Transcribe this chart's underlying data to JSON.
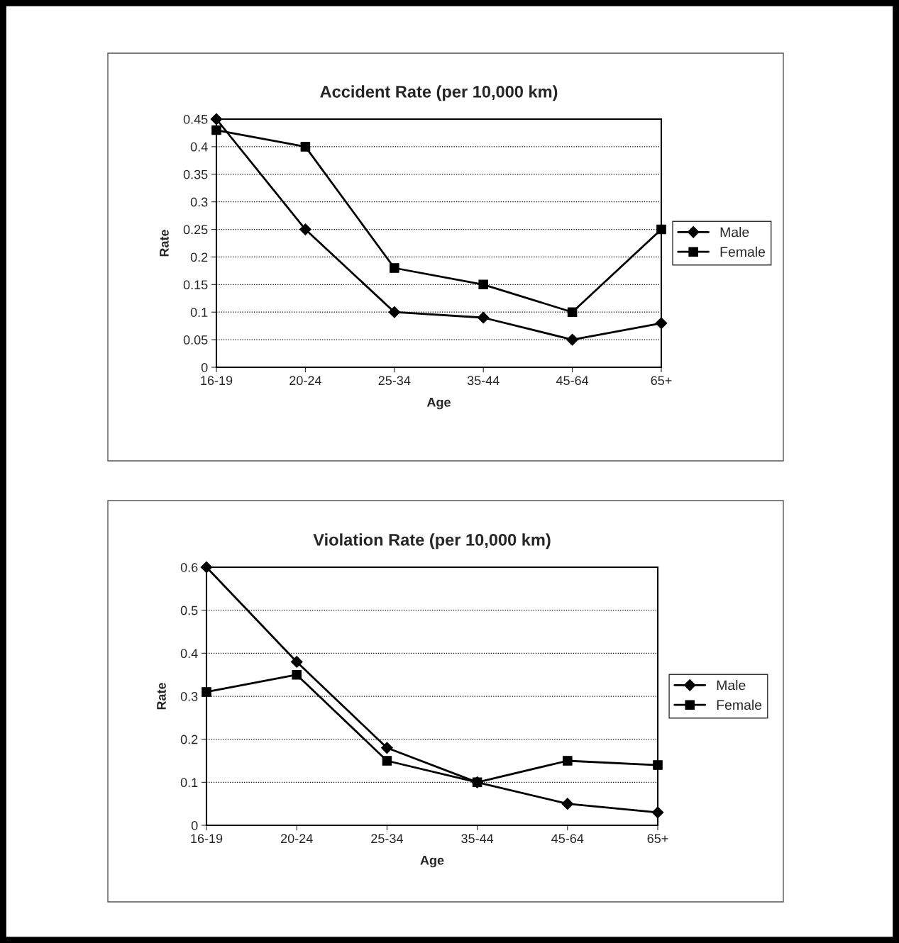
{
  "chart_data": [
    {
      "type": "line",
      "title": "Accident Rate (per 10,000 km)",
      "xlabel": "Age",
      "ylabel": "Rate",
      "categories": [
        "16-19",
        "20-24",
        "25-34",
        "35-44",
        "45-64",
        "65+"
      ],
      "series": [
        {
          "name": "Male",
          "color": "#000000",
          "marker": "diamond",
          "values": [
            0.45,
            0.25,
            0.1,
            0.09,
            0.05,
            0.08
          ]
        },
        {
          "name": "Female",
          "color": "#000000",
          "marker": "square",
          "values": [
            0.43,
            0.4,
            0.18,
            0.15,
            0.1,
            0.25
          ]
        }
      ],
      "ylim": [
        0,
        0.45
      ],
      "yticks": [
        0,
        0.05,
        0.1,
        0.15,
        0.2,
        0.25,
        0.3,
        0.35,
        0.4,
        0.45
      ],
      "grid": "y",
      "legend": "right",
      "line_style": "solid"
    },
    {
      "type": "line",
      "title": "Violation Rate (per 10,000 km)",
      "xlabel": "Age",
      "ylabel": "Rate",
      "categories": [
        "16-19",
        "20-24",
        "25-34",
        "35-44",
        "45-64",
        "65+"
      ],
      "series": [
        {
          "name": "Male",
          "color": "#000000",
          "marker": "diamond",
          "values": [
            0.6,
            0.38,
            0.18,
            0.1,
            0.05,
            0.03
          ]
        },
        {
          "name": "Female",
          "color": "#000000",
          "marker": "square",
          "values": [
            0.31,
            0.35,
            0.15,
            0.1,
            0.15,
            0.14
          ]
        }
      ],
      "ylim": [
        0,
        0.6
      ],
      "yticks": [
        0,
        0.1,
        0.2,
        0.3,
        0.4,
        0.5,
        0.6
      ],
      "grid": "y",
      "legend": "right",
      "line_style": "solid"
    }
  ]
}
